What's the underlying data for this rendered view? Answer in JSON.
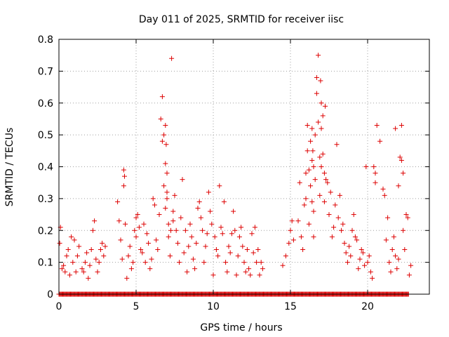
{
  "chart_data": {
    "type": "scatter",
    "title": "Day 011 of 2025, SRMTID for receiver iisc",
    "xlabel": "GPS time / hours",
    "ylabel": "SRMTID / TECUs",
    "xlim": [
      0,
      24
    ],
    "ylim": [
      0,
      0.8
    ],
    "xticks": [
      0,
      5,
      10,
      15,
      20
    ],
    "yticks": [
      0,
      0.1,
      0.2,
      0.3,
      0.4,
      0.5,
      0.6,
      0.7,
      0.8
    ],
    "xtick_labels": [
      "0",
      "5",
      "10",
      "15",
      "20"
    ],
    "ytick_labels": [
      "0",
      "0.1",
      "0.2",
      "0.3",
      "0.4",
      "0.5",
      "0.6",
      "0.7",
      "0.8"
    ],
    "grid": true,
    "marker": "+",
    "color": "#dd0000",
    "series": [
      {
        "name": "SRMTID",
        "x": [
          0.05,
          0.1,
          0.2,
          0.3,
          0.4,
          0.5,
          0.6,
          0.7,
          0.8,
          0.9,
          1.0,
          1.1,
          1.2,
          1.3,
          1.5,
          1.6,
          1.7,
          1.8,
          1.9,
          2.0,
          2.1,
          2.2,
          2.3,
          2.4,
          2.5,
          2.6,
          2.7,
          2.8,
          2.9,
          3.0,
          3.8,
          3.9,
          4.0,
          4.1,
          4.2,
          4.2,
          4.3,
          4.4,
          4.5,
          4.6,
          4.7,
          4.8,
          4.9,
          5.0,
          5.0,
          5.1,
          5.2,
          5.3,
          5.4,
          5.5,
          5.6,
          5.7,
          5.8,
          5.9,
          6.0,
          6.1,
          6.2,
          6.3,
          6.4,
          6.5,
          6.6,
          6.7,
          6.7,
          6.8,
          6.8,
          6.9,
          6.9,
          7.0,
          7.0,
          7.1,
          7.1,
          7.2,
          7.3,
          7.4,
          7.4,
          7.5,
          7.6,
          7.7,
          7.8,
          7.9,
          8.0,
          8.1,
          8.2,
          8.3,
          8.4,
          8.5,
          8.6,
          8.7,
          8.8,
          8.9,
          9.0,
          9.1,
          9.2,
          9.3,
          9.4,
          9.5,
          9.6,
          9.7,
          9.8,
          9.9,
          10.0,
          10.1,
          10.2,
          10.3,
          10.4,
          10.5,
          10.6,
          10.7,
          10.8,
          10.9,
          11.0,
          11.1,
          11.2,
          11.3,
          11.4,
          11.5,
          11.6,
          11.7,
          11.8,
          11.9,
          12.0,
          12.1,
          12.2,
          12.3,
          12.4,
          12.5,
          12.6,
          12.7,
          12.8,
          12.9,
          13.0,
          13.1,
          13.2,
          14.5,
          14.7,
          14.9,
          15.0,
          15.1,
          15.2,
          15.5,
          15.6,
          15.7,
          15.8,
          15.9,
          16.0,
          16.0,
          16.1,
          16.1,
          16.2,
          16.2,
          16.3,
          16.3,
          16.4,
          16.4,
          16.5,
          16.5,
          16.6,
          16.6,
          16.7,
          16.7,
          16.8,
          16.8,
          16.9,
          16.9,
          17.0,
          17.0,
          17.1,
          17.1,
          17.2,
          17.2,
          17.3,
          17.4,
          17.5,
          17.6,
          17.7,
          17.8,
          17.9,
          18.0,
          18.1,
          18.2,
          18.3,
          18.4,
          18.5,
          18.6,
          18.7,
          18.8,
          18.9,
          19.0,
          19.1,
          19.2,
          19.3,
          19.4,
          19.5,
          19.6,
          19.7,
          19.8,
          19.9,
          20.0,
          20.1,
          20.2,
          20.3,
          20.5,
          20.6,
          20.8,
          21.0,
          21.1,
          21.2,
          21.3,
          21.4,
          21.5,
          21.6,
          21.7,
          21.8,
          21.9,
          22.0,
          22.1,
          22.2,
          22.3,
          22.4,
          22.5,
          22.6,
          22.7,
          22.8,
          4.25,
          6.9,
          6.95,
          7.0,
          7.25,
          16.95,
          17.0,
          17.25,
          16.4,
          16.45,
          16.5,
          20.4,
          20.5,
          21.8,
          22.0,
          22.2,
          22.3
        ],
        "y": [
          0.16,
          0.21,
          0.08,
          0.09,
          0.07,
          0.12,
          0.14,
          0.06,
          0.18,
          0.1,
          0.17,
          0.07,
          0.12,
          0.15,
          0.08,
          0.07,
          0.1,
          0.13,
          0.05,
          0.09,
          0.14,
          0.2,
          0.23,
          0.11,
          0.07,
          0.1,
          0.14,
          0.16,
          0.12,
          0.15,
          0.29,
          0.23,
          0.17,
          0.11,
          0.39,
          0.34,
          0.22,
          0.05,
          0.12,
          0.15,
          0.08,
          0.1,
          0.2,
          0.24,
          0.18,
          0.25,
          0.21,
          0.14,
          0.13,
          0.22,
          0.1,
          0.19,
          0.16,
          0.08,
          0.11,
          0.3,
          0.28,
          0.17,
          0.14,
          0.25,
          0.55,
          0.48,
          0.62,
          0.5,
          0.34,
          0.41,
          0.27,
          0.38,
          0.3,
          0.22,
          0.18,
          0.12,
          0.74,
          0.23,
          0.26,
          0.31,
          0.2,
          0.16,
          0.1,
          0.24,
          0.36,
          0.13,
          0.2,
          0.07,
          0.15,
          0.22,
          0.18,
          0.11,
          0.08,
          0.16,
          0.27,
          0.29,
          0.24,
          0.2,
          0.1,
          0.15,
          0.19,
          0.32,
          0.26,
          0.22,
          0.06,
          0.18,
          0.14,
          0.12,
          0.34,
          0.21,
          0.19,
          0.29,
          0.1,
          0.07,
          0.15,
          0.13,
          0.19,
          0.26,
          0.2,
          0.06,
          0.12,
          0.18,
          0.21,
          0.15,
          0.1,
          0.07,
          0.14,
          0.08,
          0.06,
          0.19,
          0.13,
          0.21,
          0.1,
          0.14,
          0.06,
          0.1,
          0.08,
          0.09,
          0.12,
          0.16,
          0.2,
          0.23,
          0.17,
          0.23,
          0.35,
          0.18,
          0.14,
          0.28,
          0.38,
          0.3,
          0.53,
          0.45,
          0.39,
          0.22,
          0.48,
          0.34,
          0.42,
          0.29,
          0.26,
          0.18,
          0.5,
          0.36,
          0.68,
          0.63,
          0.75,
          0.54,
          0.43,
          0.31,
          0.6,
          0.4,
          0.56,
          0.44,
          0.38,
          0.29,
          0.36,
          0.35,
          0.25,
          0.32,
          0.18,
          0.21,
          0.28,
          0.47,
          0.24,
          0.31,
          0.2,
          0.22,
          0.16,
          0.13,
          0.1,
          0.15,
          0.12,
          0.2,
          0.25,
          0.18,
          0.17,
          0.08,
          0.11,
          0.14,
          0.13,
          0.09,
          0.4,
          0.1,
          0.12,
          0.07,
          0.05,
          0.35,
          0.53,
          0.48,
          0.33,
          0.31,
          0.17,
          0.24,
          0.1,
          0.07,
          0.14,
          0.18,
          0.12,
          0.08,
          0.34,
          0.43,
          0.42,
          0.2,
          0.14,
          0.25,
          0.24,
          0.06,
          0.09,
          0.37,
          0.53,
          0.47,
          0.32,
          0.2,
          0.67,
          0.52,
          0.59,
          0.52,
          0.45,
          0.4,
          0.4,
          0.38,
          0.52,
          0.11,
          0.53,
          0.38
        ],
        "baseline_hours": [
          [
            0.0,
            22.7
          ]
        ],
        "baseline_value": 0
      }
    ]
  }
}
